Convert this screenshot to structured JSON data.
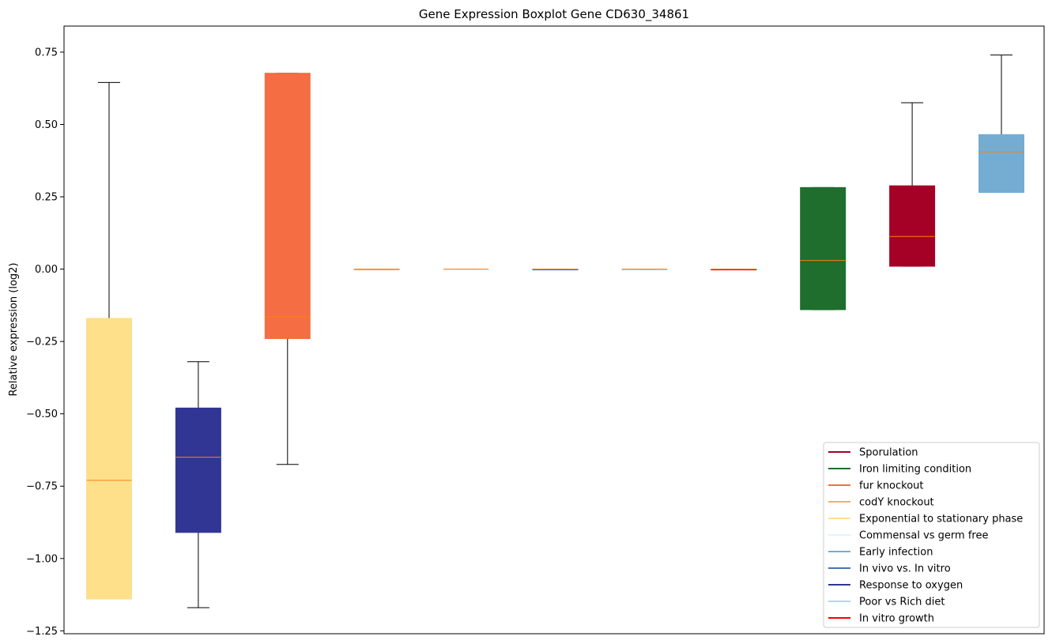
{
  "chart_data": {
    "type": "box",
    "title": "Gene Expression Boxplot Gene CD630_34861",
    "xlabel": "",
    "ylabel": "Relative expression (log2)",
    "ylim": [
      -1.26,
      0.84
    ],
    "yticks": [
      0.75,
      0.5,
      0.25,
      0.0,
      -0.25,
      -0.5,
      -0.75,
      -1.0,
      -1.25
    ],
    "ytick_labels": [
      "0.75",
      "0.50",
      "0.25",
      "0.00",
      "−0.25",
      "−0.50",
      "−0.75",
      "−1.00",
      "−1.25"
    ],
    "median_color": "#ff7f0e",
    "boxes": [
      {
        "color": "#fee08b",
        "whisker_low": -1.14,
        "q1": -1.14,
        "median": -0.73,
        "q3": -0.17,
        "whisker_high": 0.645
      },
      {
        "color": "#313695",
        "whisker_low": -1.17,
        "q1": -0.91,
        "median": -0.65,
        "q3": -0.48,
        "whisker_high": -0.32
      },
      {
        "color": "#f46d43",
        "whisker_low": -0.675,
        "q1": -0.24,
        "median": -0.165,
        "q3": 0.677,
        "whisker_high": 0.677
      },
      {
        "color": "#fdae61",
        "whisker_low": 0.0,
        "q1": 0.0,
        "median": 0.0,
        "q3": 0.0,
        "whisker_high": 0.0
      },
      {
        "color": "#e0f3f8",
        "whisker_low": 0.0,
        "q1": 0.0,
        "median": 0.0,
        "q3": 0.0,
        "whisker_high": 0.0
      },
      {
        "color": "#4575b4",
        "whisker_low": 0.0,
        "q1": 0.0,
        "median": 0.0,
        "q3": 0.0,
        "whisker_high": 0.0
      },
      {
        "color": "#abd9e9",
        "whisker_low": 0.0,
        "q1": 0.0,
        "median": 0.0,
        "q3": 0.0,
        "whisker_high": 0.0
      },
      {
        "color": "#ff0000",
        "whisker_low": 0.0,
        "q1": 0.0,
        "median": 0.0,
        "q3": 0.0,
        "whisker_high": 0.0
      },
      {
        "color": "#1f6e2e",
        "whisker_low": -0.14,
        "q1": -0.14,
        "median": 0.03,
        "q3": 0.282,
        "whisker_high": 0.282
      },
      {
        "color": "#a50026",
        "whisker_low": 0.01,
        "q1": 0.01,
        "median": 0.113,
        "q3": 0.288,
        "whisker_high": 0.575
      },
      {
        "color": "#74add1",
        "whisker_low": 0.265,
        "q1": 0.265,
        "median": 0.405,
        "q3": 0.465,
        "whisker_high": 0.74
      }
    ],
    "legend": {
      "placement": "lower-right",
      "entries": [
        {
          "label": "Sporulation",
          "color": "#a50026"
        },
        {
          "label": "Iron limiting condition",
          "color": "#1f6e2e"
        },
        {
          "label": "fur knockout",
          "color": "#f46d43"
        },
        {
          "label": "codY knockout",
          "color": "#fdae61"
        },
        {
          "label": "Exponential to stationary phase",
          "color": "#fee08b"
        },
        {
          "label": "Commensal vs germ free",
          "color": "#e0f3f8"
        },
        {
          "label": "Early infection",
          "color": "#74add1"
        },
        {
          "label": "In vivo vs. In vitro",
          "color": "#4575b4"
        },
        {
          "label": "Response to oxygen",
          "color": "#313695"
        },
        {
          "label": "Poor vs Rich diet",
          "color": "#abd9e9"
        },
        {
          "label": "In vitro growth",
          "color": "#ff0000"
        }
      ]
    }
  }
}
